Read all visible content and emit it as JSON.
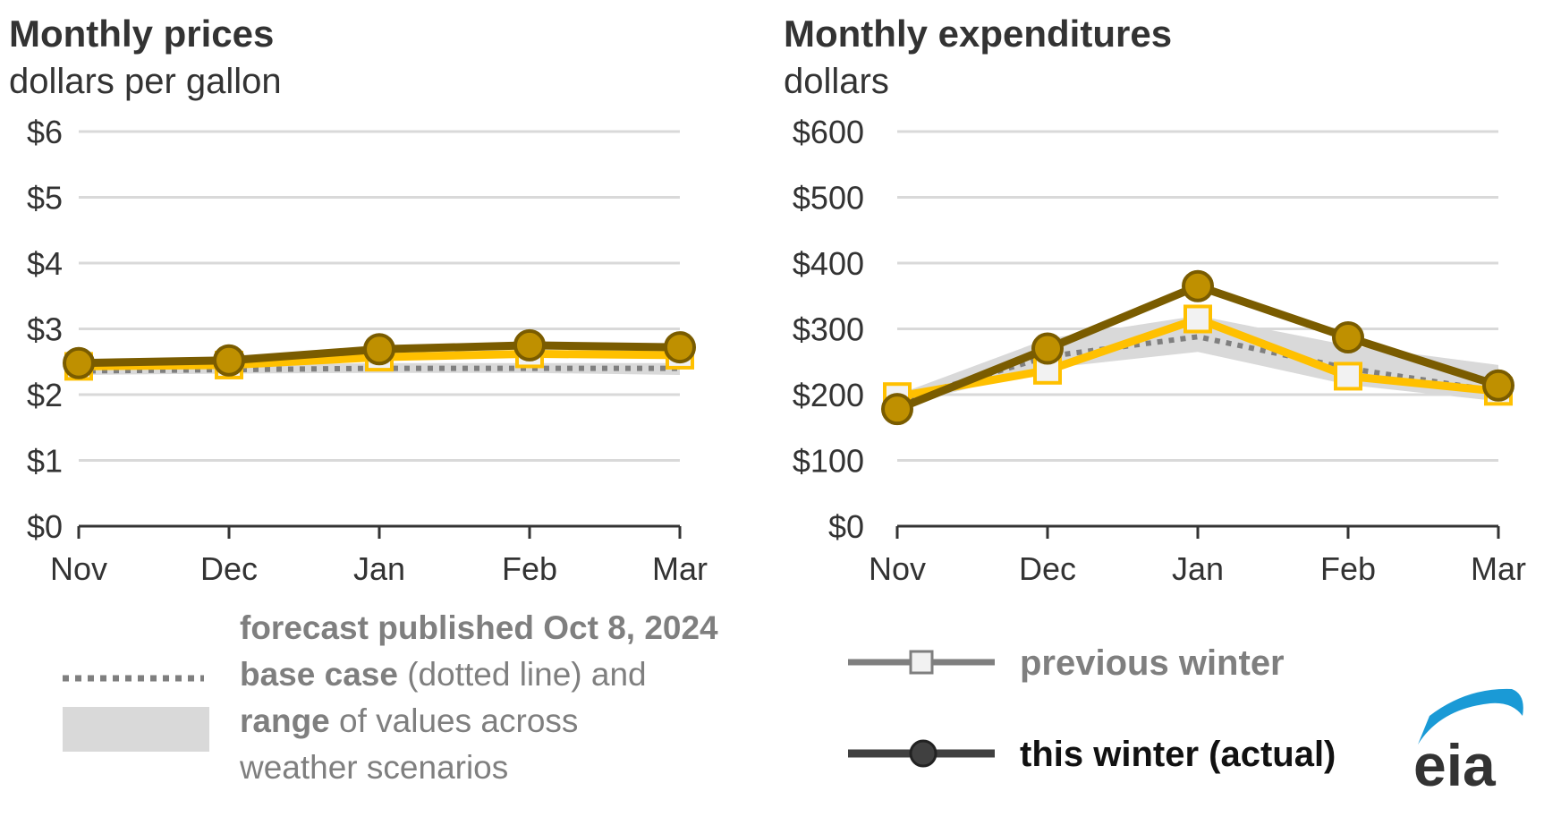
{
  "chart_data": [
    {
      "type": "line",
      "title": "Monthly prices",
      "subtitle": "dollars per gallon",
      "categories": [
        "Nov",
        "Dec",
        "Jan",
        "Feb",
        "Mar"
      ],
      "ylim": [
        0,
        6
      ],
      "yticks": [
        "$0",
        "$1",
        "$2",
        "$3",
        "$4",
        "$5",
        "$6"
      ],
      "grid": true,
      "series": [
        {
          "name": "base case",
          "style": "dotted",
          "values": [
            2.36,
            2.38,
            2.4,
            2.4,
            2.4
          ]
        },
        {
          "name": "range low",
          "values": [
            2.3,
            2.32,
            2.33,
            2.33,
            2.3
          ]
        },
        {
          "name": "range high",
          "values": [
            2.42,
            2.45,
            2.48,
            2.48,
            2.48
          ]
        },
        {
          "name": "previous winter",
          "values": [
            2.43,
            2.45,
            2.57,
            2.62,
            2.6
          ]
        },
        {
          "name": "this winter (actual)",
          "values": [
            2.48,
            2.52,
            2.69,
            2.75,
            2.72
          ]
        }
      ]
    },
    {
      "type": "line",
      "title": "Monthly expenditures",
      "subtitle": "dollars",
      "categories": [
        "Nov",
        "Dec",
        "Jan",
        "Feb",
        "Mar"
      ],
      "ylim": [
        0,
        600
      ],
      "yticks": [
        "$0",
        "$100",
        "$200",
        "$300",
        "$400",
        "$500",
        "$600"
      ],
      "grid": true,
      "series": [
        {
          "name": "base case",
          "style": "dotted",
          "values": [
            190,
            258,
            288,
            240,
            205
          ]
        },
        {
          "name": "range low",
          "values": [
            182,
            240,
            265,
            215,
            190
          ]
        },
        {
          "name": "range high",
          "values": [
            200,
            285,
            320,
            275,
            245
          ]
        },
        {
          "name": "previous winter",
          "values": [
            197,
            237,
            315,
            228,
            205
          ]
        },
        {
          "name": "this winter (actual)",
          "values": [
            178,
            270,
            365,
            287,
            214
          ]
        }
      ]
    }
  ],
  "legend": {
    "forecast_title": "forecast published Oct 8, 2024",
    "base_case_bold": "base case",
    "base_case_rest": " (dotted line) and",
    "range_bold": "range",
    "range_rest": " of values across",
    "range_line2": "weather scenarios",
    "previous": "previous winter",
    "actual": "this winter (actual)"
  },
  "colors": {
    "actual_line": "#7a5c00",
    "actual_marker": "#bf9000",
    "previous_line": "#ffc000",
    "previous_marker_fill": "#f2f2f2",
    "base_case": "#7f7f7f",
    "range_band": "#d9d9d9",
    "grid": "#d9d9d9",
    "axis": "#333333",
    "logo_arc": "#1a9ad6"
  },
  "logo": {
    "text": "eia"
  }
}
